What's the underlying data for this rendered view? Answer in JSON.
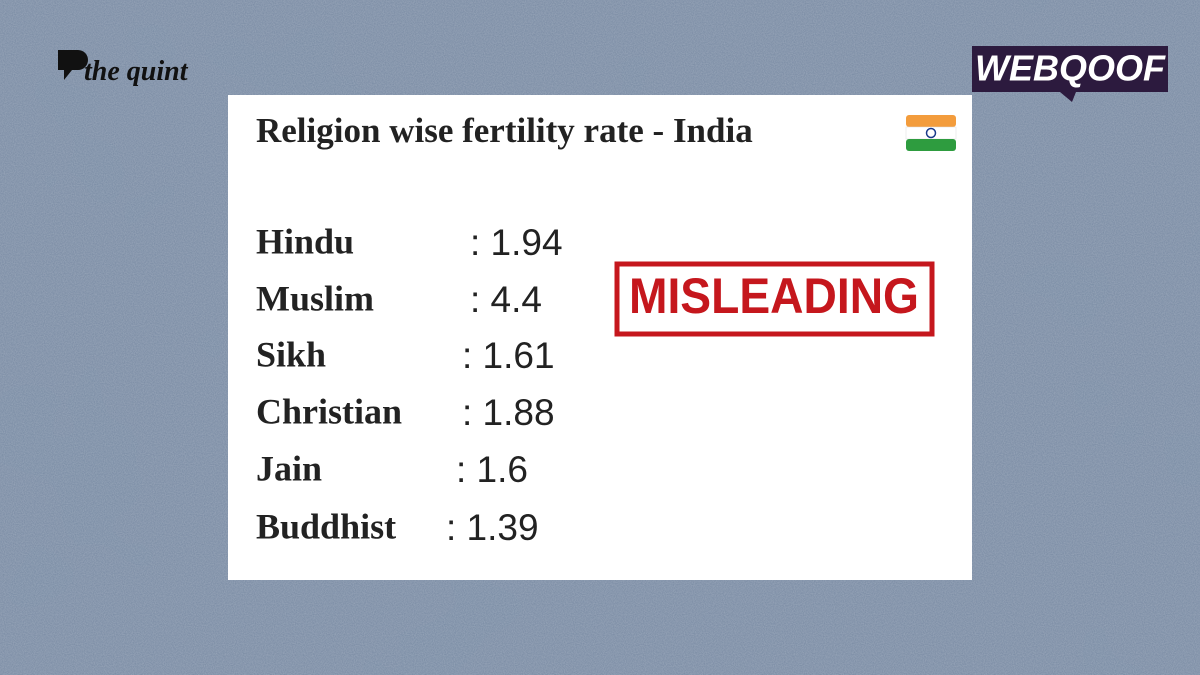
{
  "brand": {
    "logo": "the quint",
    "badge": "WEBQOOF"
  },
  "card": {
    "title": "Religion wise fertility rate - India",
    "rows": [
      {
        "label": "Hindu",
        "value": ": 1.94"
      },
      {
        "label": "Muslim",
        "value": ": 4.4"
      },
      {
        "label": "Sikh",
        "value": ": 1.61"
      },
      {
        "label": "Christian",
        "value": ": 1.88"
      },
      {
        "label": "Jain",
        "value": ": 1.6"
      },
      {
        "label": "Buddhist",
        "value": ": 1.39"
      }
    ]
  },
  "stamp": "MISLEADING"
}
